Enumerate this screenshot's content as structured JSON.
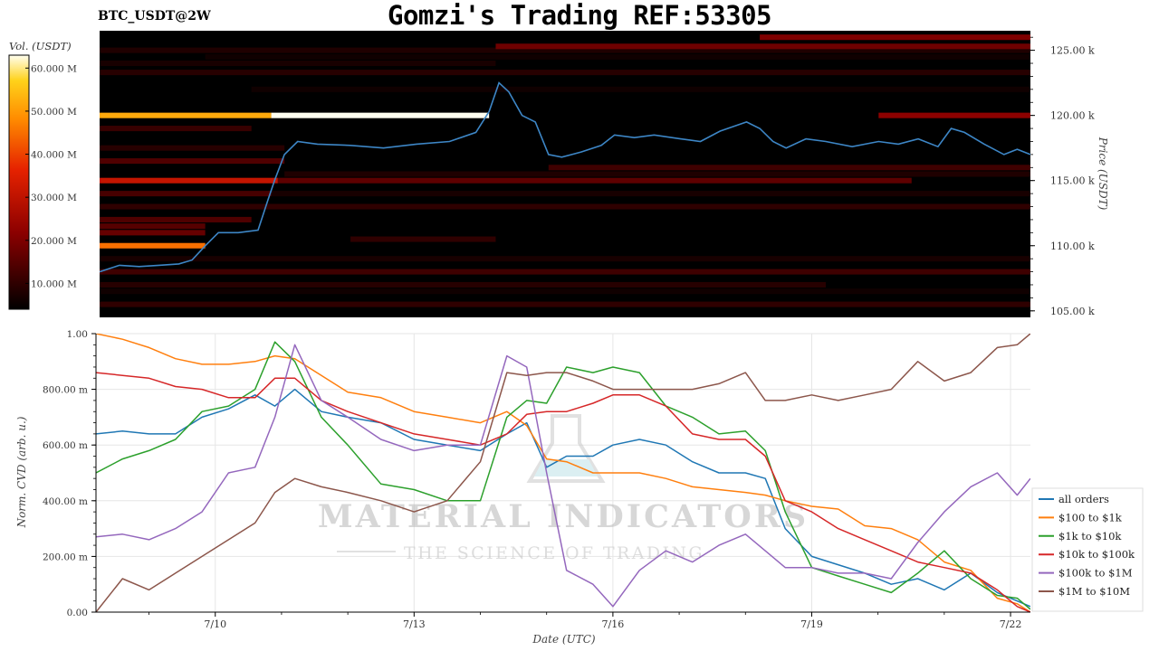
{
  "header": {
    "title": "Gomzi's Trading REF:53305",
    "pair": "BTC_USDT@2W"
  },
  "watermark": {
    "line1": "MATERIAL INDICATORS",
    "line2": "THE SCIENCE OF TRADING"
  },
  "colors": {
    "price_line": "#3d86c6",
    "heatmap_bg": "#000000",
    "grid": "#e6e6e6"
  },
  "chart_data": [
    {
      "type": "heatmap",
      "title": "BTC_USDT@2W",
      "ylabel": "Price (USDT)",
      "colorbar_label": "Vol. (USDT)",
      "colorbar_ticks": [
        "10.000 M",
        "20.000 M",
        "30.000 M",
        "40.000 M",
        "50.000 M",
        "60.000 M"
      ],
      "colorbar_range": [
        4,
        63
      ],
      "ylim": [
        104.5,
        126.5
      ],
      "y_ticks": [
        {
          "value": 105,
          "label": "105.00 k"
        },
        {
          "value": 110,
          "label": "110.00 k"
        },
        {
          "value": 115,
          "label": "115.00 k"
        },
        {
          "value": 120,
          "label": "120.00 k"
        },
        {
          "value": 125,
          "label": "125.00 k"
        }
      ],
      "x_range_days": [
        8.2,
        22.3
      ],
      "price_series": {
        "x": [
          8.2,
          8.5,
          8.8,
          9.1,
          9.4,
          9.6,
          9.8,
          10.0,
          10.3,
          10.6,
          10.75,
          10.85,
          11.0,
          11.2,
          11.5,
          12.0,
          12.5,
          13.0,
          13.5,
          13.9,
          14.1,
          14.25,
          14.4,
          14.6,
          14.8,
          15.0,
          15.2,
          15.5,
          15.8,
          16.0,
          16.3,
          16.6,
          17.0,
          17.3,
          17.6,
          18.0,
          18.2,
          18.4,
          18.6,
          18.9,
          19.2,
          19.6,
          20.0,
          20.3,
          20.6,
          20.9,
          21.1,
          21.3,
          21.6,
          21.9,
          22.1,
          22.3
        ],
        "y": [
          108.0,
          108.5,
          108.4,
          108.5,
          108.6,
          108.9,
          110.0,
          111.0,
          111.0,
          111.2,
          113.5,
          115.0,
          117.0,
          118.0,
          117.8,
          117.7,
          117.5,
          117.8,
          118.0,
          118.7,
          120.3,
          122.5,
          121.8,
          120.0,
          119.5,
          117.0,
          116.8,
          117.2,
          117.7,
          118.5,
          118.3,
          118.5,
          118.2,
          118.0,
          118.8,
          119.5,
          119.0,
          118.0,
          117.5,
          118.2,
          118.0,
          117.6,
          118.0,
          117.8,
          118.2,
          117.6,
          119.0,
          118.7,
          117.8,
          117.0,
          117.4,
          117.0
        ]
      },
      "liquidity_bands": [
        {
          "price": 125.0,
          "start": 8.2,
          "end": 22.3,
          "vol": 8
        },
        {
          "price": 124.5,
          "start": 9.8,
          "end": 22.3,
          "vol": 6
        },
        {
          "price": 125.3,
          "start": 14.2,
          "end": 22.3,
          "vol": 18
        },
        {
          "price": 126.0,
          "start": 18.2,
          "end": 22.3,
          "vol": 20
        },
        {
          "price": 124.0,
          "start": 8.2,
          "end": 14.2,
          "vol": 7
        },
        {
          "price": 123.3,
          "start": 8.2,
          "end": 22.3,
          "vol": 9
        },
        {
          "price": 122.0,
          "start": 10.5,
          "end": 22.3,
          "vol": 6
        },
        {
          "price": 120.0,
          "start": 8.2,
          "end": 10.8,
          "vol": 52
        },
        {
          "price": 120.0,
          "start": 10.8,
          "end": 14.1,
          "vol": 63
        },
        {
          "price": 120.0,
          "start": 20.0,
          "end": 22.3,
          "vol": 22
        },
        {
          "price": 119.0,
          "start": 8.2,
          "end": 10.5,
          "vol": 11
        },
        {
          "price": 117.5,
          "start": 8.2,
          "end": 11.0,
          "vol": 9
        },
        {
          "price": 116.5,
          "start": 8.2,
          "end": 11.0,
          "vol": 14
        },
        {
          "price": 116.0,
          "start": 15.0,
          "end": 22.3,
          "vol": 12
        },
        {
          "price": 115.5,
          "start": 11.0,
          "end": 22.3,
          "vol": 8
        },
        {
          "price": 115.0,
          "start": 8.2,
          "end": 10.9,
          "vol": 31
        },
        {
          "price": 115.0,
          "start": 10.9,
          "end": 20.5,
          "vol": 16
        },
        {
          "price": 114.0,
          "start": 8.2,
          "end": 10.8,
          "vol": 13
        },
        {
          "price": 114.0,
          "start": 10.8,
          "end": 22.3,
          "vol": 7
        },
        {
          "price": 113.0,
          "start": 8.2,
          "end": 22.3,
          "vol": 10
        },
        {
          "price": 112.0,
          "start": 8.2,
          "end": 10.5,
          "vol": 14
        },
        {
          "price": 111.5,
          "start": 8.2,
          "end": 9.8,
          "vol": 15
        },
        {
          "price": 111.0,
          "start": 8.2,
          "end": 9.8,
          "vol": 17
        },
        {
          "price": 110.5,
          "start": 12.0,
          "end": 14.2,
          "vol": 10
        },
        {
          "price": 110.0,
          "start": 8.2,
          "end": 9.8,
          "vol": 45
        },
        {
          "price": 109.0,
          "start": 8.2,
          "end": 22.3,
          "vol": 7
        },
        {
          "price": 108.0,
          "start": 8.2,
          "end": 22.3,
          "vol": 12
        },
        {
          "price": 107.0,
          "start": 8.2,
          "end": 19.2,
          "vol": 9
        },
        {
          "price": 106.5,
          "start": 8.2,
          "end": 22.3,
          "vol": 6
        },
        {
          "price": 105.5,
          "start": 8.2,
          "end": 22.3,
          "vol": 10
        }
      ]
    },
    {
      "type": "line",
      "xlabel": "Date (UTC)",
      "ylabel": "Norm. CVD (arb. u.)",
      "ylim": [
        0,
        1
      ],
      "grid": true,
      "legend_position": "bottom-right",
      "x_ticks": [
        {
          "value": 10,
          "label": "7/10"
        },
        {
          "value": 13,
          "label": "7/13"
        },
        {
          "value": 16,
          "label": "7/16"
        },
        {
          "value": 19,
          "label": "7/19"
        },
        {
          "value": 22,
          "label": "7/22"
        }
      ],
      "y_ticks": [
        {
          "value": 0,
          "label": "0.00"
        },
        {
          "value": 0.2,
          "label": "200.00 m"
        },
        {
          "value": 0.4,
          "label": "400.00 m"
        },
        {
          "value": 0.6,
          "label": "600.00 m"
        },
        {
          "value": 0.8,
          "label": "800.00 m"
        },
        {
          "value": 1.0,
          "label": "1.00"
        }
      ],
      "x": [
        8.2,
        8.6,
        9.0,
        9.4,
        9.8,
        10.2,
        10.6,
        10.9,
        11.2,
        11.6,
        12.0,
        12.5,
        13.0,
        13.5,
        14.0,
        14.4,
        14.7,
        15.0,
        15.3,
        15.7,
        16.0,
        16.4,
        16.8,
        17.2,
        17.6,
        18.0,
        18.3,
        18.6,
        19.0,
        19.4,
        19.8,
        20.2,
        20.6,
        21.0,
        21.4,
        21.8,
        22.1,
        22.3
      ],
      "series": [
        {
          "name": "all orders",
          "color": "#1f77b4",
          "values": [
            0.64,
            0.65,
            0.64,
            0.64,
            0.7,
            0.73,
            0.78,
            0.74,
            0.8,
            0.72,
            0.7,
            0.68,
            0.62,
            0.6,
            0.58,
            0.64,
            0.68,
            0.52,
            0.56,
            0.56,
            0.6,
            0.62,
            0.6,
            0.54,
            0.5,
            0.5,
            0.48,
            0.3,
            0.2,
            0.17,
            0.14,
            0.1,
            0.12,
            0.08,
            0.14,
            0.07,
            0.04,
            0.02
          ]
        },
        {
          "name": "$100 to $1k",
          "color": "#ff7f0e",
          "values": [
            1.0,
            0.98,
            0.95,
            0.91,
            0.89,
            0.89,
            0.9,
            0.92,
            0.91,
            0.85,
            0.79,
            0.77,
            0.72,
            0.7,
            0.68,
            0.72,
            0.67,
            0.55,
            0.54,
            0.5,
            0.5,
            0.5,
            0.48,
            0.45,
            0.44,
            0.43,
            0.42,
            0.4,
            0.38,
            0.37,
            0.31,
            0.3,
            0.26,
            0.18,
            0.15,
            0.05,
            0.03,
            0.0
          ]
        },
        {
          "name": "$1k to $10k",
          "color": "#2ca02c",
          "values": [
            0.5,
            0.55,
            0.58,
            0.62,
            0.72,
            0.74,
            0.8,
            0.97,
            0.9,
            0.7,
            0.6,
            0.46,
            0.44,
            0.4,
            0.4,
            0.7,
            0.76,
            0.75,
            0.88,
            0.86,
            0.88,
            0.86,
            0.74,
            0.7,
            0.64,
            0.65,
            0.58,
            0.36,
            0.16,
            0.13,
            0.1,
            0.07,
            0.14,
            0.22,
            0.12,
            0.06,
            0.05,
            0.01
          ]
        },
        {
          "name": "$10k to $100k",
          "color": "#d62728",
          "values": [
            0.86,
            0.85,
            0.84,
            0.81,
            0.8,
            0.77,
            0.77,
            0.84,
            0.84,
            0.76,
            0.72,
            0.68,
            0.64,
            0.62,
            0.6,
            0.64,
            0.71,
            0.72,
            0.72,
            0.75,
            0.78,
            0.78,
            0.74,
            0.64,
            0.62,
            0.62,
            0.56,
            0.4,
            0.36,
            0.3,
            0.26,
            0.22,
            0.18,
            0.16,
            0.14,
            0.08,
            0.02,
            0.0
          ]
        },
        {
          "name": "$100k to $1M",
          "color": "#9467bd",
          "values": [
            0.27,
            0.28,
            0.26,
            0.3,
            0.36,
            0.5,
            0.52,
            0.7,
            0.96,
            0.76,
            0.7,
            0.62,
            0.58,
            0.6,
            0.6,
            0.92,
            0.88,
            0.5,
            0.15,
            0.1,
            0.02,
            0.15,
            0.22,
            0.18,
            0.24,
            0.28,
            0.22,
            0.16,
            0.16,
            0.14,
            0.14,
            0.12,
            0.25,
            0.36,
            0.45,
            0.5,
            0.42,
            0.48
          ]
        },
        {
          "name": "$1M to $10M",
          "color": "#8c564b",
          "values": [
            0.0,
            0.12,
            0.08,
            0.14,
            0.2,
            0.26,
            0.32,
            0.43,
            0.48,
            0.45,
            0.43,
            0.4,
            0.36,
            0.4,
            0.54,
            0.86,
            0.85,
            0.86,
            0.86,
            0.83,
            0.8,
            0.8,
            0.8,
            0.8,
            0.82,
            0.86,
            0.76,
            0.76,
            0.78,
            0.76,
            0.78,
            0.8,
            0.9,
            0.83,
            0.86,
            0.95,
            0.96,
            1.0
          ]
        }
      ]
    }
  ]
}
